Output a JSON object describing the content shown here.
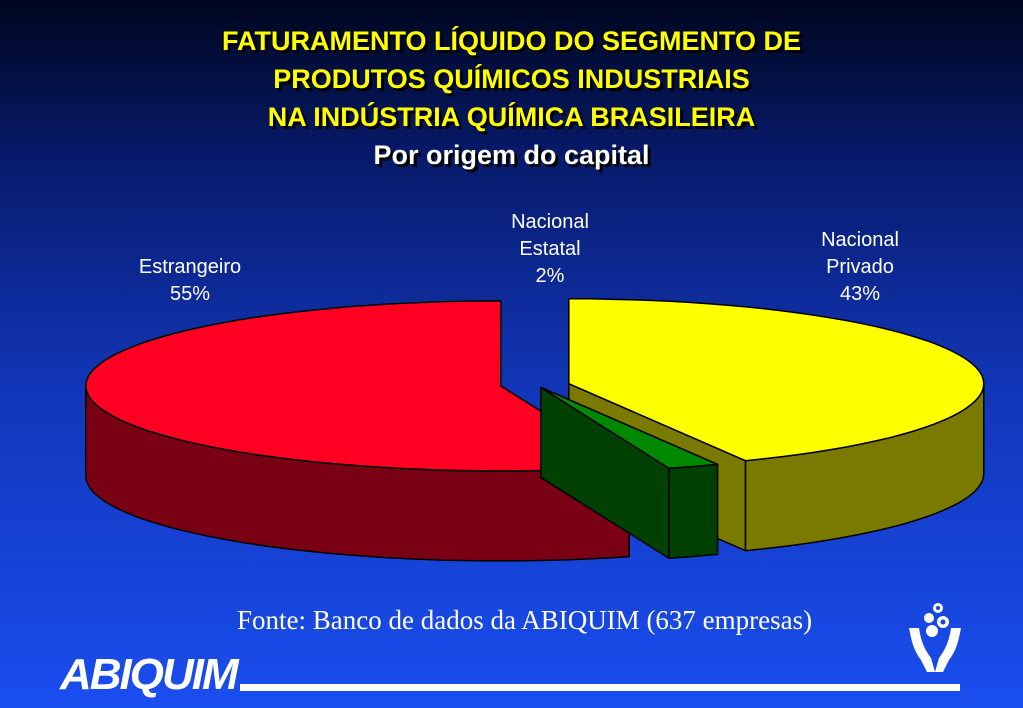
{
  "title": {
    "line1": "FATURAMENTO LÍQUIDO DO SEGMENTO DE",
    "line2": "PRODUTOS QUÍMICOS INDUSTRIAIS",
    "line3": "NA INDÚSTRIA QUÍMICA BRASILEIRA",
    "subtitle": "Por origem do capital"
  },
  "chart_data": {
    "type": "pie",
    "style": "3d-exploded",
    "slices": [
      {
        "label_line1": "Estrangeiro",
        "label_line2": "",
        "percent_label": "55%",
        "value": 55,
        "top_color": "#ff0022",
        "side_color": "#7a0014"
      },
      {
        "label_line1": "Nacional",
        "label_line2": "Estatal",
        "percent_label": "2%",
        "value": 2,
        "top_color": "#008800",
        "side_color": "#004000"
      },
      {
        "label_line1": "Nacional",
        "label_line2": "Privado",
        "percent_label": "43%",
        "value": 43,
        "top_color": "#ffff00",
        "side_color": "#7a7a00"
      }
    ]
  },
  "source": "Fonte: Banco de dados da ABIQUIM (637 empresas)",
  "brand": {
    "name": "ABIQUIM",
    "icon": "hands-molecule-icon",
    "color": "#ffffff"
  }
}
